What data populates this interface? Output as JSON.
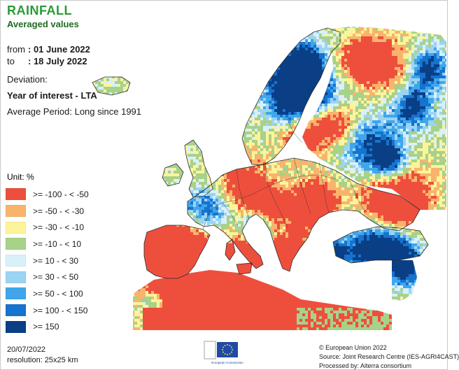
{
  "header": {
    "title": "RAINFALL",
    "subtitle": "Averaged values",
    "from_label": "from",
    "from_value": ": 01 June 2022",
    "to_label": "to",
    "to_value": ": 18 July 2022",
    "deviation_label": "Deviation:",
    "year_of_interest": "Year of interest - LTA",
    "average_period": "Average Period: Long since 1991"
  },
  "legend": {
    "unit": "Unit: %",
    "items": [
      {
        "label": ">= -100 - < -50",
        "color": "#ee4f3c"
      },
      {
        "label": ">= -50 - < -30",
        "color": "#f8b46d"
      },
      {
        "label": ">= -30 - < -10",
        "color": "#fdf49a"
      },
      {
        "label": ">= -10 - < 10",
        "color": "#a8d18a"
      },
      {
        "label": ">= 10 - < 30",
        "color": "#d9f0fb"
      },
      {
        "label": ">= 30 - < 50",
        "color": "#9bd4f3"
      },
      {
        "label": ">= 50 - < 100",
        "color": "#3fa6ec"
      },
      {
        "label": ">= 100 - < 150",
        "color": "#1673cf"
      },
      {
        "label": ">= 150",
        "color": "#0a3f86"
      }
    ]
  },
  "map": {
    "sea_color": "#ffffff",
    "no_data_color": "#bdbdbd",
    "border_color": "#2a2a2a"
  },
  "footer": {
    "date": "20/07/2022",
    "resolution": "resolution: 25x25 km",
    "copyright": "© European Union 2022",
    "source": "Source: Joint Research Centre (IES-AGRI4CAST)",
    "processed": "Processed by: Alterra consortium",
    "logo_icon": "eu-flag-icon",
    "logo_caption": "European Commission"
  }
}
